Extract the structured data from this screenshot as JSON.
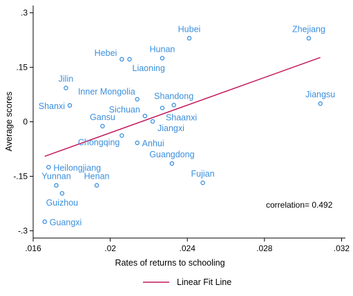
{
  "chart_data": {
    "type": "scatter",
    "xlabel": "Rates of returns to schooling",
    "ylabel": "Average scores",
    "xlim": [
      0.016,
      0.0322
    ],
    "ylim": [
      -0.32,
      0.32
    ],
    "x_ticks": [
      0.016,
      0.02,
      0.024,
      0.028,
      0.032
    ],
    "x_tick_labels": [
      ".016",
      ".02",
      ".024",
      ".028",
      ".032"
    ],
    "y_ticks": [
      -0.3,
      -0.15,
      0,
      0.15,
      0.3
    ],
    "y_tick_labels": [
      "-.3",
      "-.15",
      "0",
      ".15",
      ".3"
    ],
    "grid": false,
    "legend_position": "bottom",
    "annotation": "correlation= 0.492",
    "points": [
      {
        "label": "Hubei",
        "x": 0.0241,
        "y": 0.23
      },
      {
        "label": "Zhejiang",
        "x": 0.0303,
        "y": 0.23
      },
      {
        "label": "Hebei",
        "x": 0.0206,
        "y": 0.172
      },
      {
        "label": "Hunan",
        "x": 0.0227,
        "y": 0.175
      },
      {
        "label": "Liaoning",
        "x": 0.021,
        "y": 0.172
      },
      {
        "label": "Jilin",
        "x": 0.0177,
        "y": 0.093
      },
      {
        "label": "Inner Mongolia",
        "x": 0.0214,
        "y": 0.062
      },
      {
        "label": "Shandong",
        "x": 0.0233,
        "y": 0.046
      },
      {
        "label": "Jiangsu",
        "x": 0.0309,
        "y": 0.05
      },
      {
        "label": "Shanxi",
        "x": 0.0179,
        "y": 0.045
      },
      {
        "label": "Sichuan",
        "x": 0.0218,
        "y": 0.016
      },
      {
        "label": "Shaanxi",
        "x": 0.0227,
        "y": 0.038
      },
      {
        "label": "Gansu",
        "x": 0.0196,
        "y": -0.012
      },
      {
        "label": "Jiangxi",
        "x": 0.0222,
        "y": 0.001
      },
      {
        "label": "Chongqing",
        "x": 0.0206,
        "y": -0.038
      },
      {
        "label": "Anhui",
        "x": 0.0214,
        "y": -0.058
      },
      {
        "label": "Guangdong",
        "x": 0.0232,
        "y": -0.115
      },
      {
        "label": "Heilongjiang",
        "x": 0.0168,
        "y": -0.125
      },
      {
        "label": "Yunnan",
        "x": 0.0172,
        "y": -0.175
      },
      {
        "label": "Henan",
        "x": 0.0193,
        "y": -0.175
      },
      {
        "label": "Fujian",
        "x": 0.0248,
        "y": -0.168
      },
      {
        "label": "Guizhou",
        "x": 0.0175,
        "y": -0.197
      },
      {
        "label": "Guangxi",
        "x": 0.0166,
        "y": -0.275
      }
    ],
    "fit_line": {
      "name": "Linear Fit Line",
      "x": [
        0.0166,
        0.0309
      ],
      "y": [
        -0.095,
        0.177
      ]
    },
    "colors": {
      "points": "#3b8fdc",
      "fit_line": "#c2185b",
      "axes": "#000000"
    }
  }
}
